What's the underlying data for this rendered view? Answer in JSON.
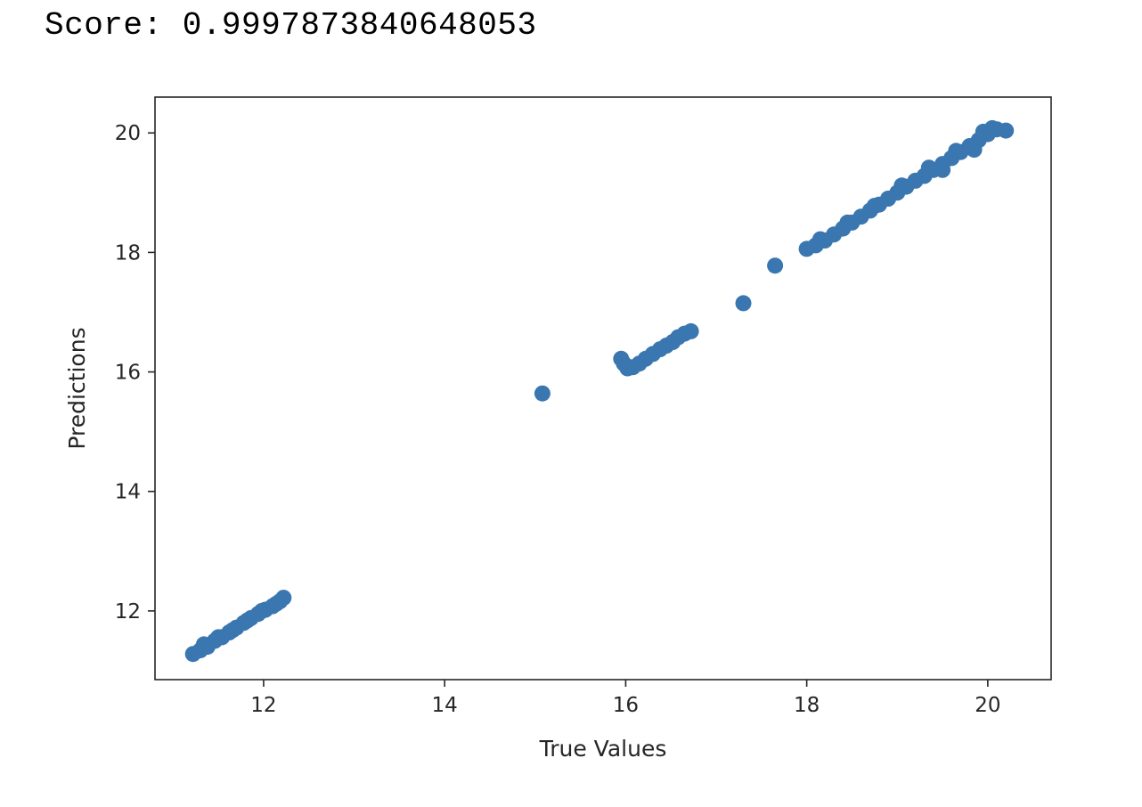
{
  "output": {
    "score_text": "Score: 0.9997873840648053"
  },
  "colors": {
    "series": "#3a76af",
    "axes": "#262626",
    "background": "#ffffff"
  },
  "chart_data": {
    "type": "scatter",
    "title": "",
    "xlabel": "True Values",
    "ylabel": "Predictions",
    "xlim": [
      10.8,
      20.7
    ],
    "ylim": [
      10.85,
      20.6
    ],
    "xticks": [
      12,
      14,
      16,
      18,
      20
    ],
    "yticks": [
      12,
      14,
      16,
      18,
      20
    ],
    "grid": false,
    "legend": "none",
    "series": [
      {
        "x": [
          11.22,
          11.3,
          11.38,
          11.46,
          11.54,
          11.62,
          11.7,
          11.78,
          11.86,
          11.94,
          12.02,
          12.1,
          12.18,
          12.22,
          11.34,
          11.5,
          11.66,
          11.82,
          11.98,
          12.14,
          15.08,
          15.95,
          15.98,
          16.02,
          16.08,
          16.15,
          16.22,
          16.3,
          16.38,
          16.45,
          16.52,
          16.58,
          16.65,
          16.72,
          17.3,
          17.65,
          18.0,
          18.1,
          18.2,
          18.3,
          18.4,
          18.5,
          18.6,
          18.7,
          18.8,
          18.9,
          19.0,
          19.1,
          19.2,
          19.3,
          19.4,
          19.5,
          19.6,
          19.7,
          19.8,
          19.9,
          20.0,
          20.1,
          20.2,
          18.15,
          18.45,
          18.75,
          19.05,
          19.35,
          19.65,
          19.95,
          19.5,
          19.85,
          20.05
        ],
        "y": [
          11.28,
          11.34,
          11.4,
          11.5,
          11.56,
          11.64,
          11.72,
          11.8,
          11.88,
          11.95,
          12.02,
          12.08,
          12.16,
          12.22,
          11.44,
          11.56,
          11.68,
          11.84,
          12.0,
          12.12,
          15.64,
          16.22,
          16.14,
          16.06,
          16.08,
          16.14,
          16.22,
          16.3,
          16.38,
          16.44,
          16.5,
          16.58,
          16.64,
          16.68,
          17.15,
          17.78,
          18.06,
          18.12,
          18.2,
          18.3,
          18.4,
          18.5,
          18.6,
          18.7,
          18.8,
          18.9,
          19.0,
          19.1,
          19.2,
          19.28,
          19.38,
          19.48,
          19.58,
          19.68,
          19.78,
          19.88,
          19.98,
          20.06,
          20.04,
          18.22,
          18.5,
          18.78,
          19.12,
          19.42,
          19.7,
          20.02,
          19.38,
          19.72,
          20.08
        ]
      }
    ]
  }
}
